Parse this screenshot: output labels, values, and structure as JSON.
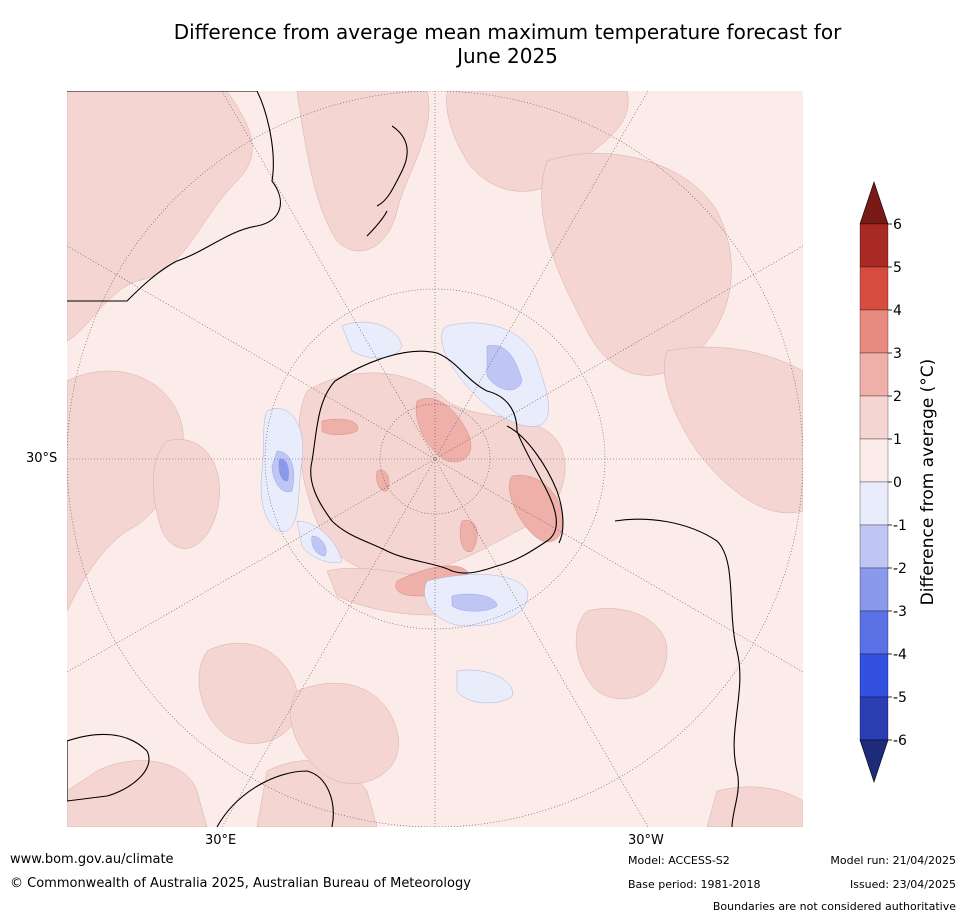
{
  "title": {
    "line1": "Difference from average mean maximum temperature forecast for",
    "line2": "June 2025"
  },
  "map": {
    "projection": "south polar stereographic",
    "lat_labels": [
      "30°S"
    ],
    "lon_labels": [
      "30°E",
      "30°W"
    ],
    "colors": {
      "land_outline": "#000000",
      "borders": "#808080",
      "graticule": "#555555"
    }
  },
  "colorbar": {
    "label": "Difference from average (°C)",
    "ticks": [
      "6",
      "5",
      "4",
      "3",
      "2",
      "1",
      "0",
      "-1",
      "-2",
      "-3",
      "-4",
      "-5",
      "-6"
    ],
    "bins": [
      {
        "range": ">6",
        "color": "#7a1a17"
      },
      {
        "range": "5 to 6",
        "color": "#a92a24"
      },
      {
        "range": "4 to 5",
        "color": "#d64d40"
      },
      {
        "range": "3 to 4",
        "color": "#e88a80"
      },
      {
        "range": "2 to 3",
        "color": "#eeb0a9"
      },
      {
        "range": "1 to 2",
        "color": "#f5d5d1"
      },
      {
        "range": "0 to 1",
        "color": "#fbebe9"
      },
      {
        "range": "-1 to 0",
        "color": "#e9ecfb"
      },
      {
        "range": "-2 to -1",
        "color": "#bfc6f3"
      },
      {
        "range": "-3 to -2",
        "color": "#8a99ec"
      },
      {
        "range": "-4 to -3",
        "color": "#5b72e6"
      },
      {
        "range": "-5 to -4",
        "color": "#3351e0"
      },
      {
        "range": "-6 to -5",
        "color": "#2a3db3"
      },
      {
        "range": "<-6",
        "color": "#1e2a7a"
      }
    ]
  },
  "footer": {
    "website": "www.bom.gov.au/climate",
    "copyright": "© Commonwealth of Australia 2025, Australian Bureau of Meteorology",
    "model": "Model: ACCESS-S2",
    "base_period": "Base period: 1981-2018",
    "model_run": "Model run: 21/04/2025",
    "issued": "Issued: 23/04/2025",
    "disclaimer": "Boundaries are not considered authoritative"
  }
}
